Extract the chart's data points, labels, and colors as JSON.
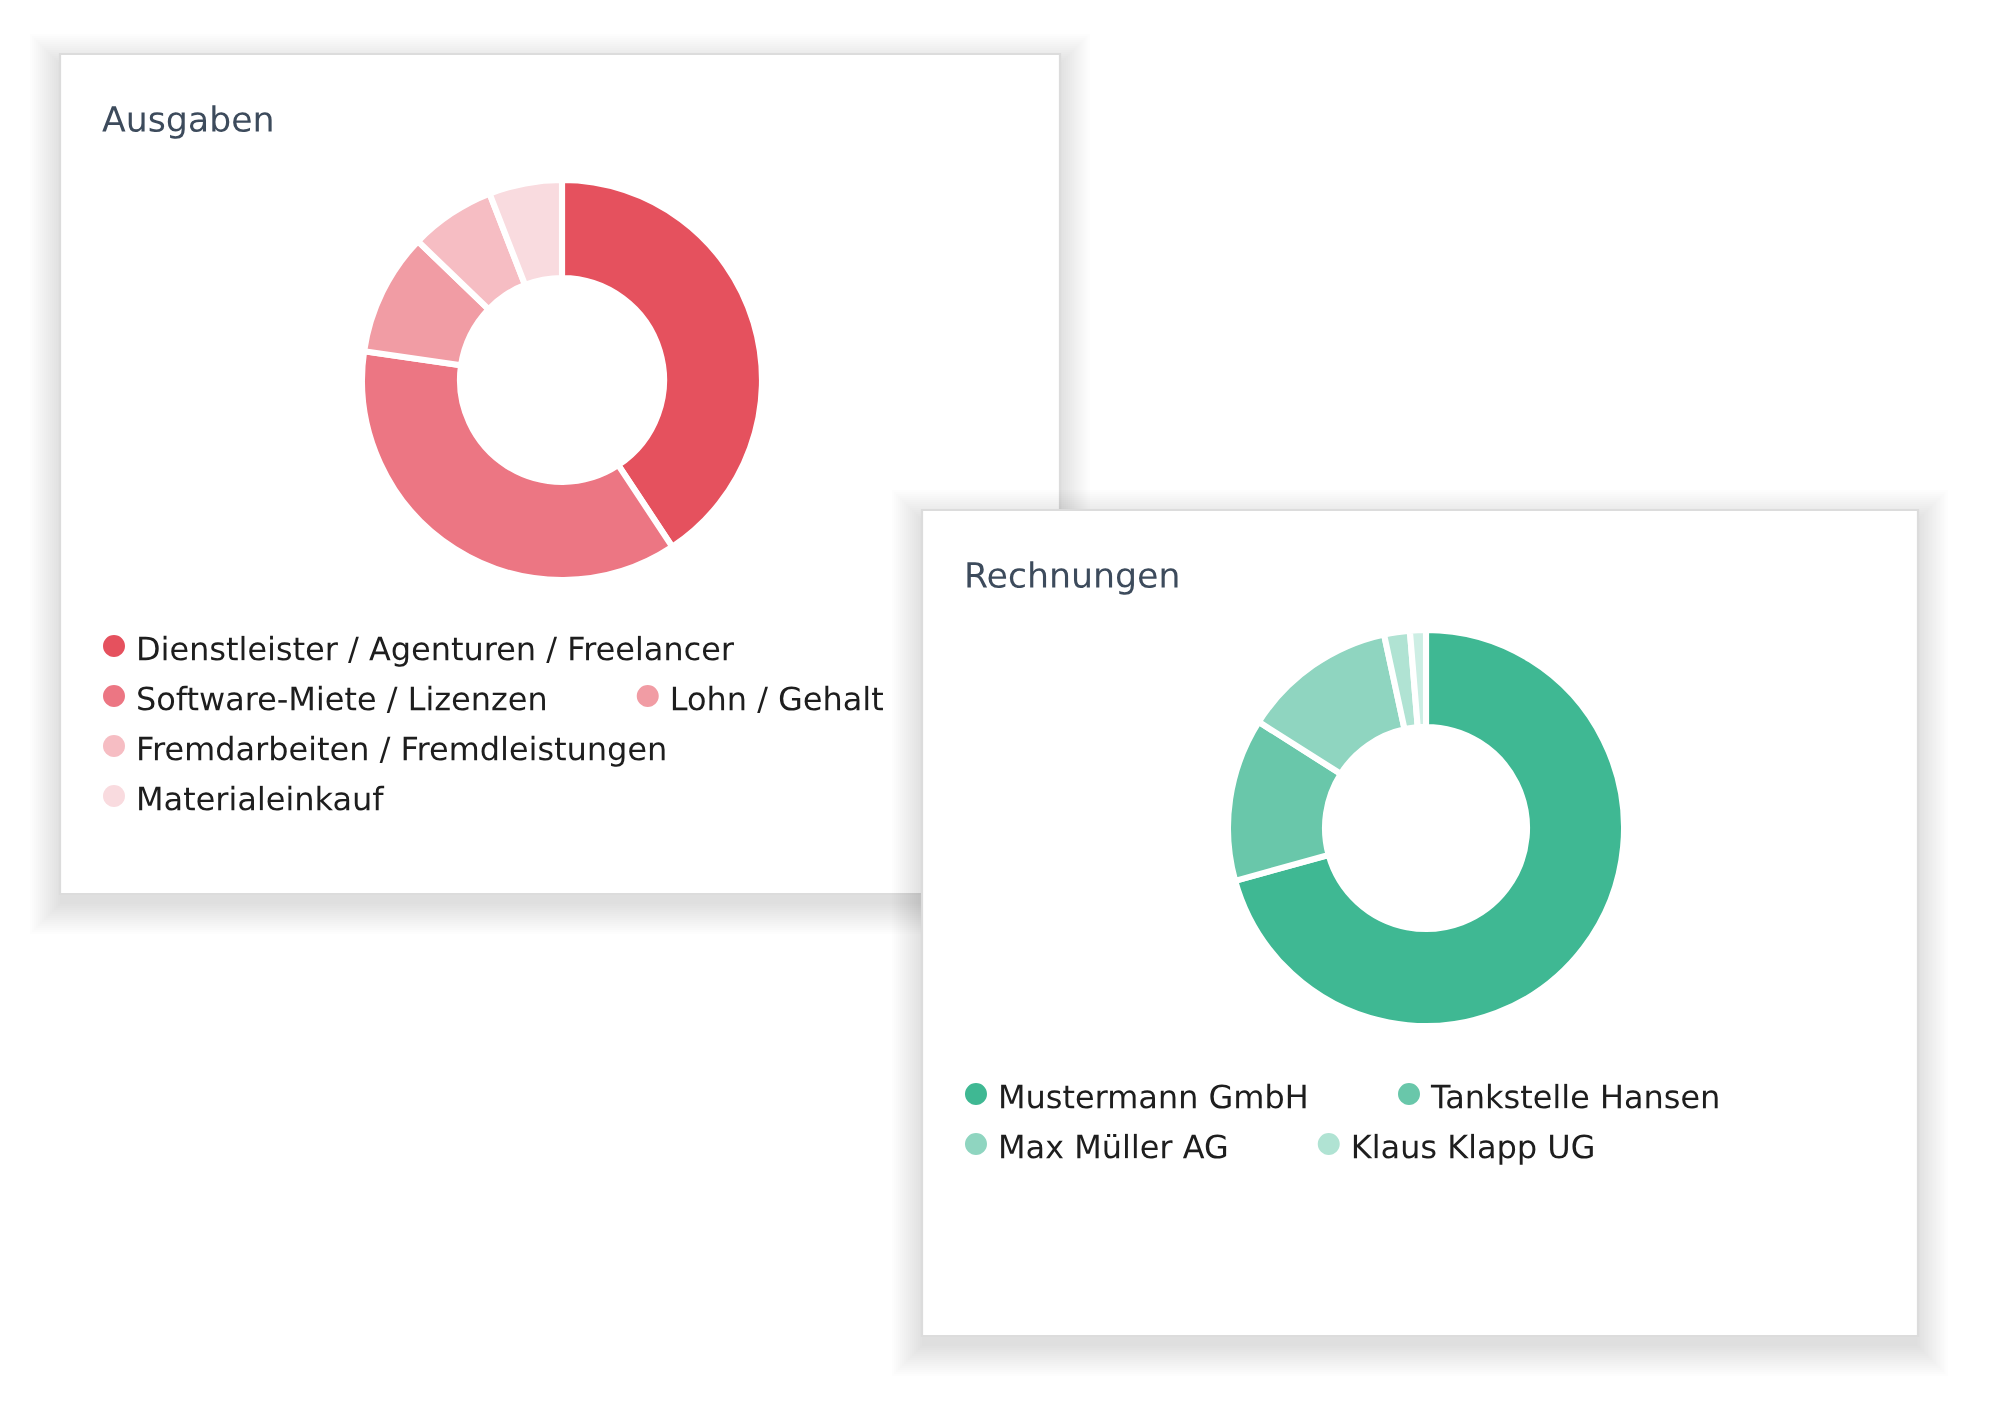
{
  "chart_data": [
    {
      "type": "donut",
      "title": "Ausgaben",
      "categories": [
        "Dienstleister / Agenturen / Freelancer",
        "Software-Miete / Lizenzen",
        "Lohn / Gehalt",
        "Fremdarbeiten / Fremdleistungen",
        "Materialeinkauf"
      ],
      "values": [
        40.7,
        36.6,
        9.9,
        6.9,
        5.9
      ],
      "colors": [
        "#e5515e",
        "#ec7683",
        "#f19ca4",
        "#f6bdc3",
        "#f9dbdf"
      ],
      "legend": "bottom"
    },
    {
      "type": "donut",
      "title": "Rechnungen",
      "categories": [
        "Mustermann GmbH",
        "Tankstelle Hansen",
        "Max Müller AG",
        "Klaus Klapp UG",
        null
      ],
      "values": [
        70.7,
        13.3,
        12.6,
        2.1,
        1.3
      ],
      "colors": [
        "#3fb893",
        "#69c7aa",
        "#8fd5c0",
        "#b0e3d3",
        "#cdeee4"
      ],
      "legend": "bottom"
    }
  ]
}
